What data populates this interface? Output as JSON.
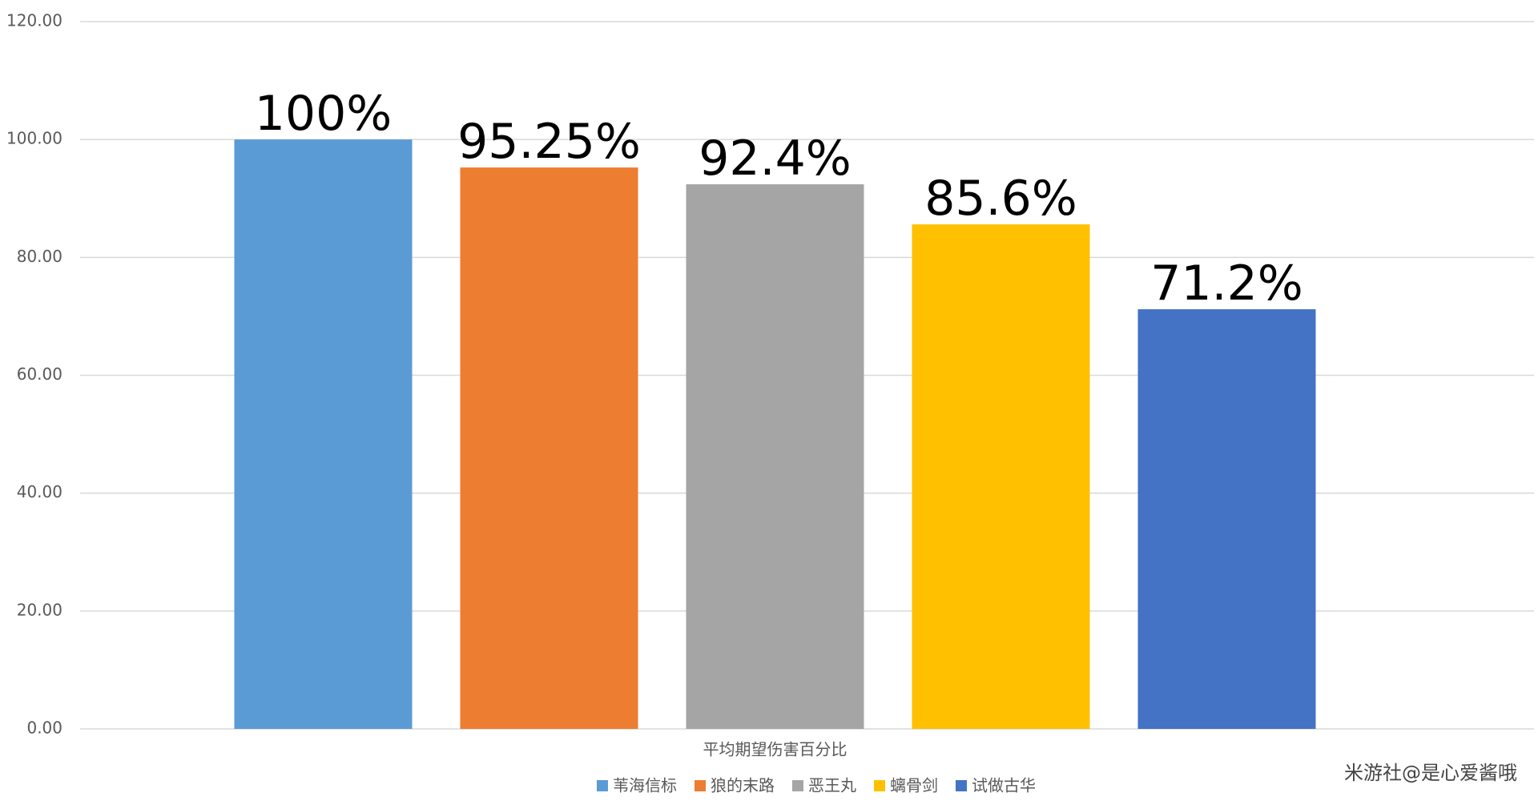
{
  "chart_data": {
    "type": "bar",
    "categories": [
      "平均期望伤害百分比"
    ],
    "series": [
      {
        "name": "苇海信标",
        "color": "#5b9bd5",
        "values": [
          100
        ],
        "value_labels": [
          "100%"
        ]
      },
      {
        "name": "狼的末路",
        "color": "#ed7d31",
        "values": [
          95.25
        ],
        "value_labels": [
          "95.25%"
        ]
      },
      {
        "name": "恶王丸",
        "color": "#a5a5a5",
        "values": [
          92.4
        ],
        "value_labels": [
          "92.4%"
        ]
      },
      {
        "name": "螭骨剑",
        "color": "#ffc000",
        "values": [
          85.6
        ],
        "value_labels": [
          "85.6%"
        ]
      },
      {
        "name": "试做古华",
        "color": "#4472c4",
        "values": [
          71.2
        ],
        "value_labels": [
          "71.2%"
        ]
      }
    ],
    "ylim": [
      0,
      120
    ],
    "yticks": [
      {
        "value": 0,
        "label": "0.00"
      },
      {
        "value": 20,
        "label": "20.00"
      },
      {
        "value": 40,
        "label": "40.00"
      },
      {
        "value": 60,
        "label": "60.00"
      },
      {
        "value": 80,
        "label": "80.00"
      },
      {
        "value": 100,
        "label": "100.00"
      },
      {
        "value": 120,
        "label": "120.00"
      }
    ],
    "grid": true,
    "legend": "bottom",
    "watermark": "米游社@是心爱酱哦"
  }
}
